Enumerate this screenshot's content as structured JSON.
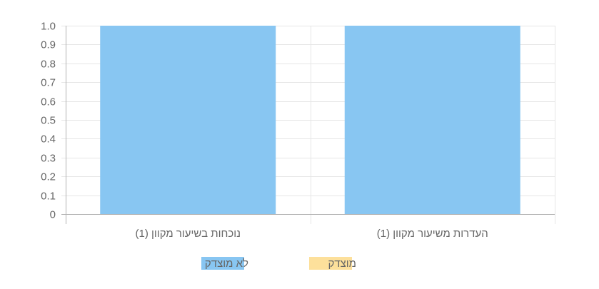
{
  "chart_data": {
    "type": "bar",
    "categories": [
      "נוכחות בשיעור מקוון (1)",
      "העדרות משיעור מקוון (1)"
    ],
    "series": [
      {
        "name": "לא מוצדק",
        "values": [
          1.0,
          1.0
        ],
        "color": "#88c6f2"
      },
      {
        "name": "מוצדק",
        "values": [
          0,
          0
        ],
        "color": "#fde09b"
      }
    ],
    "y_ticks": [
      "0",
      "0.1",
      "0.2",
      "0.3",
      "0.4",
      "0.5",
      "0.6",
      "0.7",
      "0.8",
      "0.9",
      "1.0"
    ],
    "ylim": [
      0,
      1.0
    ],
    "grid": true,
    "legend_position": "bottom",
    "colors": {
      "grid": "#e6e6e6",
      "axis": "#b3b3b3",
      "text": "#666666"
    }
  }
}
